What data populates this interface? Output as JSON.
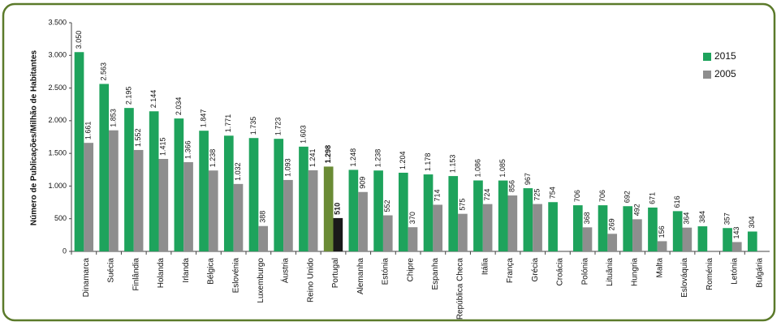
{
  "chart_data": {
    "type": "bar",
    "y_axis_label": "Número de Publicações/Milhão de Habitantes",
    "categories": [
      "Dinamarca",
      "Suécia",
      "Finlândia",
      "Holanda",
      "Irlanda",
      "Bélgica",
      "Eslovénia",
      "Luxemburgo",
      "Áustria",
      "Reino Unido",
      "Portugal",
      "Alemanha",
      "Estónia",
      "Chipre",
      "Espanha",
      "República Checa",
      "Itália",
      "França",
      "Grécia",
      "Croácia",
      "Polónia",
      "Lituânia",
      "Hungria",
      "Malta",
      "Eslováquia",
      "Roménia",
      "Letónia",
      "Bulgária"
    ],
    "series": [
      {
        "name": "2015",
        "color": "#1ea35c",
        "highlight_color": "#6a8b35",
        "values": [
          3050,
          2563,
          2195,
          2144,
          2034,
          1847,
          1771,
          1735,
          1723,
          1603,
          1298,
          1248,
          1238,
          1204,
          1178,
          1153,
          1086,
          1085,
          967,
          754,
          706,
          706,
          692,
          671,
          616,
          384,
          357,
          304
        ],
        "value_labels": [
          "3.050",
          "2.563",
          "2.195",
          "2.144",
          "2.034",
          "1.847",
          "1.771",
          "1.735",
          "1.723",
          "1.603",
          "1.298",
          "1.248",
          "1.238",
          "1.204",
          "1.178",
          "1.153",
          "1.086",
          "1.085",
          "967",
          "754",
          "706",
          "706",
          "692",
          "671",
          "616",
          "384",
          "357",
          "304"
        ]
      },
      {
        "name": "2005",
        "color": "#8e8e8e",
        "highlight_color": "#1a1a1a",
        "values": [
          1661,
          1853,
          1552,
          1415,
          1366,
          1238,
          1032,
          388,
          1093,
          1241,
          510,
          909,
          552,
          370,
          714,
          575,
          724,
          856,
          725,
          null,
          368,
          269,
          492,
          156,
          364,
          null,
          143,
          null
        ],
        "value_labels": [
          "1.661",
          "1.853",
          "1.552",
          "1.415",
          "1.366",
          "1.238",
          "1.032",
          "388",
          "1.093",
          "1.241",
          "510",
          "909",
          "552",
          "370",
          "714",
          "575",
          "724",
          "856",
          "725",
          null,
          "368",
          "269",
          "492",
          "156",
          "364",
          null,
          "143",
          null
        ]
      }
    ],
    "highlight": "Portugal",
    "ylim": [
      0,
      3500
    ],
    "yticks": [
      0,
      500,
      {
        "value": 1000,
        "label": "1.000"
      },
      {
        "value": 1500,
        "label": "1.500"
      },
      {
        "value": 2000,
        "label": "2.000"
      },
      {
        "value": 2500,
        "label": "2.500"
      },
      {
        "value": 3000,
        "label": "3.000"
      },
      {
        "value": 3500,
        "label": "3.500"
      }
    ],
    "legend": "top-right"
  }
}
